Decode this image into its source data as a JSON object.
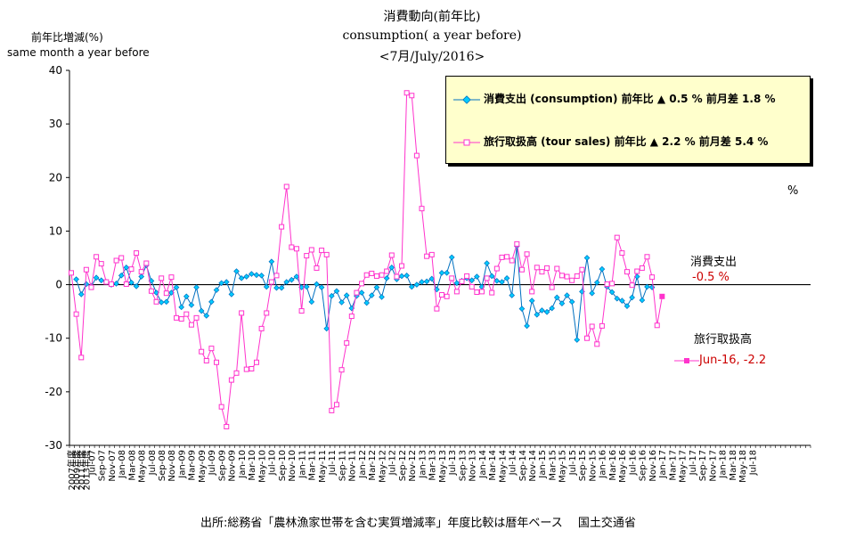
{
  "titles": {
    "line1": "消費動向(前年比)",
    "line2": "consumption( a year before)",
    "line3": "<7月/July/2016>"
  },
  "ylabel": {
    "jp": "前年比増減(%)",
    "en": "same month a year before"
  },
  "legend": {
    "consumption": "消費支出 (consumption) 前年比 ▲ 0.5 % 前月差 1.8 %",
    "tour": "旅行取扱高 (tour sales) 前年比 ▲ 2.2 % 前月差 5.4 %"
  },
  "annotations": {
    "percent": "%",
    "consumption_name": "消費支出",
    "consumption_value": "-0.5 %",
    "tour_name": "旅行取扱高",
    "tour_point": "Jun-16, -2.2"
  },
  "source": "出所:総務省「農林漁家世帯を含む実質増減率」年度比較は暦年ベース　 国土交通省",
  "colors": {
    "consumption": "#0070c0",
    "consumption_marker": "#00ccff",
    "tour": "#ff33cc",
    "tour_label": "#cc0000",
    "legend_bg": "#ffffcc"
  },
  "chart_data": {
    "type": "line",
    "ylim": [
      -30,
      40
    ],
    "yticks": [
      -30,
      -20,
      -10,
      0,
      10,
      20,
      30,
      40
    ],
    "grid": false,
    "legend_position": "top-right",
    "xticks": [
      "2007年度",
      "2009年度",
      "2011年度",
      "2013年度",
      "Jul-07",
      "Sep-07",
      "Nov-07",
      "Jan-08",
      "Mar-08",
      "May-08",
      "Jul-08",
      "Sep-08",
      "Nov-08",
      "Jan-09",
      "Mar-09",
      "May-09",
      "Jul-09",
      "Sep-09",
      "Nov-09",
      "Jan-10",
      "Mar-10",
      "May-10",
      "Jul-10",
      "Sep-10",
      "Nov-10",
      "Jan-11",
      "Mar-11",
      "May-11",
      "Jul-11",
      "Sep-11",
      "Nov-11",
      "Jan-12",
      "Mar-12",
      "May-12",
      "Jul-12",
      "Sep-12",
      "Nov-12",
      "Jan-13",
      "Mar-13",
      "May-13",
      "Jul-13",
      "Sep-13",
      "Nov-13",
      "Jan-14",
      "Mar-14",
      "May-14",
      "Jul-14",
      "Sep-14",
      "Nov-14",
      "Jan-15",
      "Mar-15",
      "May-15",
      "Jul-15",
      "Sep-15",
      "Nov-15",
      "Jan-16",
      "Mar-16",
      "May-16",
      "Jul-16",
      "Sep-16",
      "Nov-16",
      "Jan-17",
      "Mar-17",
      "May-17",
      "Jul-17",
      "Sep-17",
      "Nov-17",
      "Jan-18",
      "Mar-18",
      "May-18",
      "Jul-18"
    ],
    "series": [
      {
        "name": "消費支出",
        "values": [
          1.0,
          -1.8,
          0.1,
          -0.3,
          1.3,
          0.8,
          0.5,
          0.0,
          0.2,
          1.7,
          3.2,
          0.4,
          -0.3,
          1.5,
          3.6,
          0.7,
          -1.5,
          -3.3,
          -3.2,
          -1.5,
          -0.5,
          -4.2,
          -2.2,
          -3.8,
          -0.5,
          -4.9,
          -5.8,
          -3.2,
          -1.0,
          0.3,
          0.5,
          -1.8,
          2.5,
          1.2,
          1.5,
          2.0,
          1.8,
          1.7,
          -0.4,
          4.3,
          -0.6,
          -0.6,
          0.5,
          0.9,
          1.5,
          -0.5,
          -0.4,
          -3.2,
          0.1,
          -0.5,
          -8.2,
          -2.1,
          -1.2,
          -3.3,
          -2.0,
          -4.4,
          -2.1,
          -1.5,
          -3.4,
          -2.0,
          -0.5,
          -2.3,
          1.2,
          3.2,
          1.0,
          1.6,
          1.7,
          -0.4,
          0.0,
          0.5,
          0.6,
          1.1,
          -0.9,
          2.2,
          2.2,
          5.1,
          0.3,
          0.7,
          1.2,
          0.8,
          1.5,
          -0.4,
          4.0,
          1.6,
          0.7,
          0.5,
          1.2,
          -2.0,
          7.2,
          -4.5,
          -7.7,
          -3.0,
          -5.6,
          -4.8,
          -5.1,
          -4.4,
          -2.4,
          -3.5,
          -2.0,
          -3.2,
          -10.3,
          -1.3,
          5.0,
          -1.6,
          0.4,
          2.9,
          -0.4,
          -1.4,
          -2.6,
          -3.0,
          -4.0,
          -2.4,
          1.5,
          -2.9,
          -0.4,
          -0.5
        ],
        "start_index": 1
      },
      {
        "name": "旅行取扱高",
        "values": [
          2.2,
          -5.5,
          -13.6,
          2.8,
          -0.5,
          5.2,
          3.9,
          0.5,
          0.1,
          4.5,
          5.0,
          0.1,
          2.9,
          5.9,
          2.4,
          4.0,
          -1.2,
          -3.2,
          1.2,
          -1.6,
          1.4,
          -6.2,
          -6.4,
          -5.5,
          -7.5,
          -6.2,
          -12.5,
          -14.2,
          -11.9,
          -14.5,
          -22.8,
          -26.5,
          -17.8,
          -16.5,
          -5.3,
          -15.8,
          -15.7,
          -14.5,
          -8.2,
          -5.3,
          0.5,
          1.7,
          10.8,
          18.3,
          7.0,
          6.7,
          -4.9,
          5.4,
          6.5,
          3.1,
          6.4,
          5.6,
          -23.5,
          -22.4,
          -15.9,
          -10.9,
          -5.9,
          -1.5,
          0.2,
          1.8,
          2.1,
          1.6,
          1.8,
          2.5,
          5.5,
          1.5,
          3.5,
          35.8,
          35.3,
          24.1,
          14.2,
          5.3,
          5.6,
          -4.5,
          -1.9,
          -2.2,
          1.2,
          -1.3,
          0.6,
          1.6,
          -0.4,
          -1.4,
          -1.3,
          1.2,
          -1.5,
          3.0,
          5.1,
          5.2,
          4.5,
          7.6,
          2.8,
          5.7,
          -1.3,
          3.2,
          2.4,
          3.1,
          -0.5,
          3.0,
          1.7,
          1.5,
          0.8,
          1.6,
          2.8,
          -10.0,
          -7.8,
          -11.1,
          -7.7,
          0.1,
          0.2,
          8.8,
          5.9,
          2.4,
          -0.1,
          2.5,
          3.1,
          5.2,
          1.4,
          -7.6,
          -2.2
        ],
        "start_index": 0
      }
    ]
  }
}
